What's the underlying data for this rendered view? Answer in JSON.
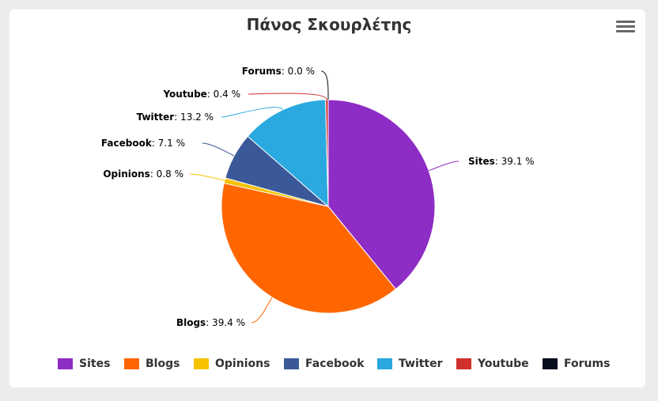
{
  "chart_data": {
    "type": "pie",
    "title": "Πάνος Σκουρλέτης",
    "slices": [
      {
        "name": "Sites",
        "value": 39.1,
        "color": "#8e2cc6"
      },
      {
        "name": "Blogs",
        "value": 39.4,
        "color": "#ff6600"
      },
      {
        "name": "Opinions",
        "value": 0.8,
        "color": "#f7c200"
      },
      {
        "name": "Facebook",
        "value": 7.1,
        "color": "#3b5998"
      },
      {
        "name": "Twitter",
        "value": 13.2,
        "color": "#29a9e0"
      },
      {
        "name": "Youtube",
        "value": 0.4,
        "color": "#d0302c"
      },
      {
        "name": "Forums",
        "value": 0.0,
        "color": "#0a0f1e"
      }
    ],
    "label_suffix": " %",
    "legend_placement": "bottom"
  },
  "menu": {
    "icon": "hamburger-menu-icon"
  }
}
